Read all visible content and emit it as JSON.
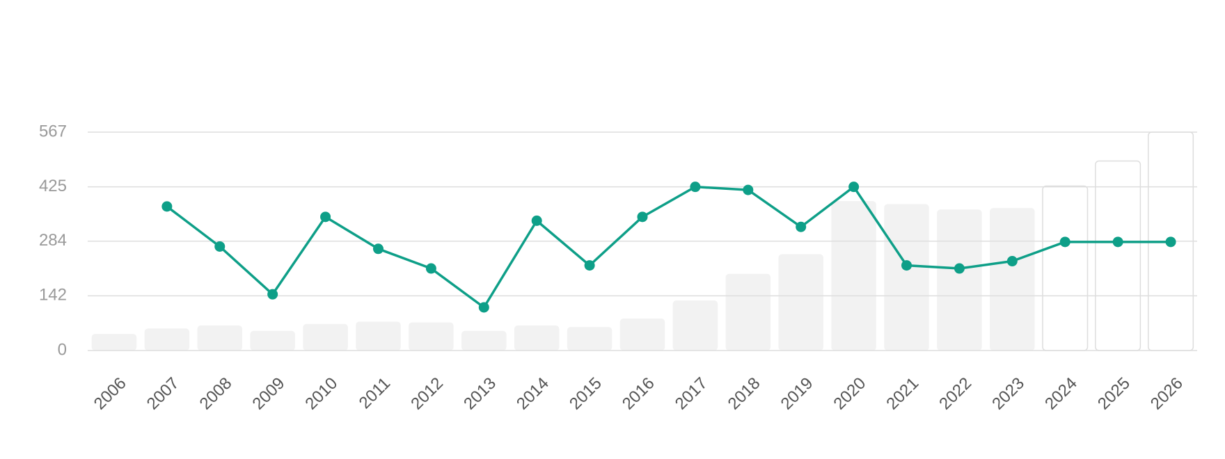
{
  "chart_data": {
    "type": "combo",
    "categories": [
      "2006",
      "2007",
      "2008",
      "2009",
      "2010",
      "2011",
      "2012",
      "2013",
      "2014",
      "2015",
      "2016",
      "2017",
      "2018",
      "2019",
      "2020",
      "2021",
      "2022",
      "2023",
      "2024",
      "2025",
      "2026"
    ],
    "series": [
      {
        "type": "bar",
        "color": "#f2f2f2",
        "values": [
          43,
          57,
          65,
          51,
          69,
          75,
          73,
          51,
          65,
          61,
          83,
          130,
          199,
          250,
          388,
          380,
          366,
          370,
          null,
          null,
          null
        ]
      },
      {
        "type": "bar",
        "color": "#ffffff",
        "stroke": "#dddddd",
        "values": [
          null,
          null,
          null,
          null,
          null,
          null,
          null,
          null,
          null,
          null,
          null,
          null,
          null,
          null,
          null,
          null,
          null,
          null,
          427,
          492,
          567
        ]
      },
      {
        "type": "line",
        "color": "#0e9f88",
        "values": [
          null,
          374,
          270,
          146,
          347,
          264,
          213,
          112,
          337,
          221,
          347,
          425,
          417,
          321,
          425,
          221,
          213,
          232,
          282,
          282,
          282
        ]
      }
    ],
    "ylim": [
      0,
      567
    ],
    "yticks": [
      0,
      142,
      284,
      425,
      567
    ],
    "grid": true
  }
}
